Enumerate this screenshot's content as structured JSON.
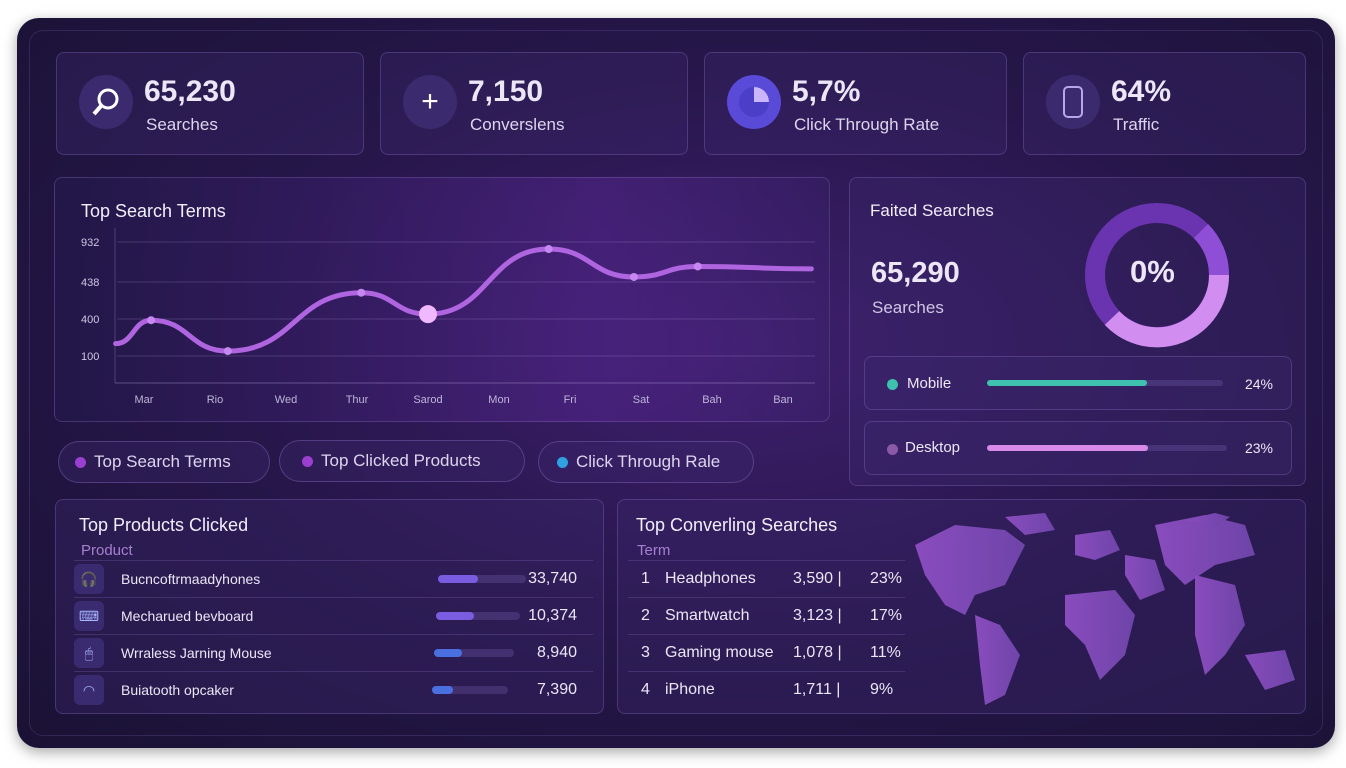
{
  "kpis": [
    {
      "icon": "search-icon",
      "value": "65,230",
      "label": "Searches"
    },
    {
      "icon": "plus-icon",
      "value": "7,150",
      "label": "Converslens"
    },
    {
      "icon": "pie-icon",
      "value": "5,7%",
      "label": "Click Through Rate"
    },
    {
      "icon": "phone-icon",
      "value": "64%",
      "label": "Traffic"
    }
  ],
  "chart_data": {
    "type": "line",
    "title": "Top Search Terms",
    "categories": [
      "Mar",
      "Rio",
      "Wed",
      "Thur",
      "Sarod",
      "Mon",
      "Fri",
      "Sat",
      "Bah",
      "Ban"
    ],
    "yticks": [
      "100",
      "400",
      "438",
      "932"
    ],
    "series": [
      {
        "x": [
          -0.4,
          0.1,
          1.18,
          3.06,
          4.0,
          5.7,
          6.9,
          7.8,
          9.4
        ],
        "y": [
          200,
          390,
          140,
          427,
          405,
          845,
          500,
          630,
          600
        ]
      }
    ],
    "grid": true
  },
  "failed": {
    "title": "Faited Searches",
    "value": "65,290",
    "label": "Searches",
    "donut_label": "0%",
    "devices": [
      {
        "name": "Mobile",
        "pct": "24%",
        "fill": 0.68,
        "color": "#3fc1b0"
      },
      {
        "name": "Desktop",
        "pct": "23%",
        "fill": 0.67,
        "color": "#d78ae8"
      }
    ]
  },
  "filters": [
    {
      "label": "Top Search Terms",
      "color": "#9a3fd0"
    },
    {
      "label": "Top Clicked Products",
      "color": "#9a3fd0"
    },
    {
      "label": "Click Through Rale",
      "color": "#2fa0e0"
    }
  ],
  "products": {
    "title": "Top Products Clicked",
    "header": "Product",
    "rows": [
      {
        "icon": "headphones-icon",
        "name": "Bucncoftrmaadyhones",
        "value": "33,740",
        "fill": 0.45
      },
      {
        "icon": "keyboard-icon",
        "name": "Mecharued bevboard",
        "value": "10,374",
        "fill": 0.45
      },
      {
        "icon": "mouse-icon",
        "name": "Wrraless Jarning Mouse",
        "value": "8,940",
        "fill": 0.35
      },
      {
        "icon": "speaker-icon",
        "name": "Buiatooth opcaker",
        "value": "7,390",
        "fill": 0.28
      }
    ]
  },
  "converting": {
    "title": "Top Converling Searches",
    "header": "Term",
    "rows": [
      {
        "rank": "1",
        "term": "Headphones",
        "count": "3,590 |",
        "pct": "23%"
      },
      {
        "rank": "2",
        "term": "Smartwatch",
        "count": "3,123 |",
        "pct": "17%"
      },
      {
        "rank": "3",
        "term": "Gaming mouse",
        "count": "1,078 |",
        "pct": "11%"
      },
      {
        "rank": "4",
        "term": "iPhone",
        "count": "1,711 |",
        "pct": "9%"
      }
    ]
  }
}
